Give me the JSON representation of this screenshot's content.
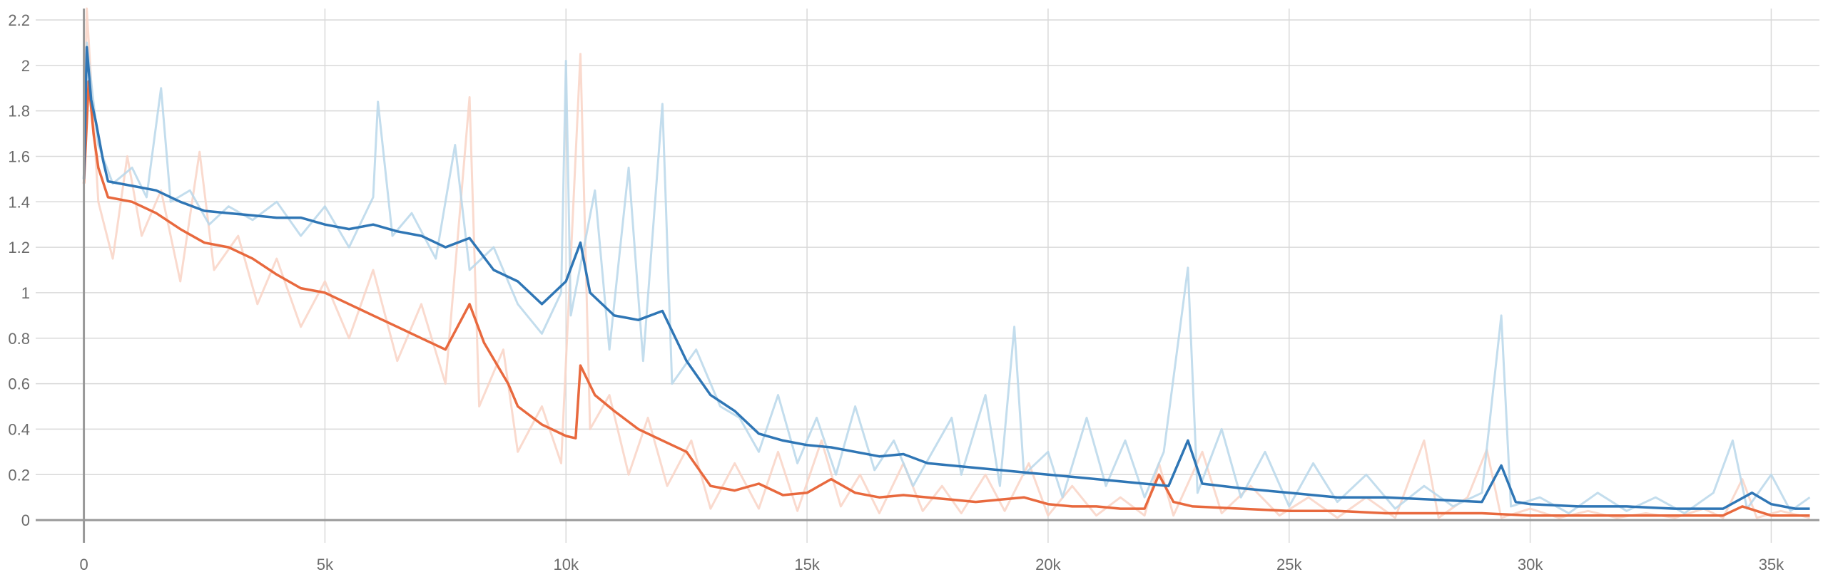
{
  "chart_data": {
    "type": "line",
    "title": "",
    "xlabel": "",
    "ylabel": "",
    "xlim": [
      -1000,
      36000
    ],
    "ylim": [
      -0.1,
      2.25
    ],
    "x_ticks": [
      0,
      5000,
      10000,
      15000,
      20000,
      25000,
      30000,
      35000
    ],
    "x_tick_labels": [
      "0",
      "5k",
      "10k",
      "15k",
      "20k",
      "25k",
      "30k",
      "35k"
    ],
    "y_ticks": [
      0,
      0.2,
      0.4,
      0.6,
      0.8,
      1,
      1.2,
      1.4,
      1.6,
      1.8,
      2,
      2.2
    ],
    "y_tick_labels": [
      "0",
      "0.2",
      "0.4",
      "0.6",
      "0.8",
      "1",
      "1.2",
      "1.4",
      "1.6",
      "1.8",
      "2",
      "2.2"
    ],
    "grid": true,
    "legend": "none",
    "colors": {
      "blue": "#2f76b5",
      "blue_raw": "#b9d7ea",
      "orange": "#e8693e",
      "orange_raw": "#f9d3c6"
    },
    "series": [
      {
        "color": "#2f76b5",
        "smoothed": [
          [
            0,
            1.5
          ],
          [
            60,
            2.08
          ],
          [
            150,
            1.85
          ],
          [
            250,
            1.75
          ],
          [
            400,
            1.58
          ],
          [
            500,
            1.49
          ],
          [
            1000,
            1.47
          ],
          [
            1500,
            1.45
          ],
          [
            2000,
            1.4
          ],
          [
            2500,
            1.36
          ],
          [
            3000,
            1.35
          ],
          [
            3500,
            1.34
          ],
          [
            4000,
            1.33
          ],
          [
            4500,
            1.33
          ],
          [
            5000,
            1.3
          ],
          [
            5500,
            1.28
          ],
          [
            6000,
            1.3
          ],
          [
            6500,
            1.27
          ],
          [
            7000,
            1.25
          ],
          [
            7500,
            1.2
          ],
          [
            8000,
            1.24
          ],
          [
            8500,
            1.1
          ],
          [
            9000,
            1.05
          ],
          [
            9500,
            0.95
          ],
          [
            10000,
            1.05
          ],
          [
            10300,
            1.22
          ],
          [
            10500,
            1.0
          ],
          [
            11000,
            0.9
          ],
          [
            11500,
            0.88
          ],
          [
            12000,
            0.92
          ],
          [
            12500,
            0.7
          ],
          [
            13000,
            0.55
          ],
          [
            13500,
            0.48
          ],
          [
            14000,
            0.38
          ],
          [
            14500,
            0.35
          ],
          [
            15000,
            0.33
          ],
          [
            15500,
            0.32
          ],
          [
            16000,
            0.3
          ],
          [
            16500,
            0.28
          ],
          [
            17000,
            0.29
          ],
          [
            17500,
            0.25
          ],
          [
            18000,
            0.24
          ],
          [
            18500,
            0.23
          ],
          [
            19000,
            0.22
          ],
          [
            19500,
            0.21
          ],
          [
            20000,
            0.2
          ],
          [
            20500,
            0.19
          ],
          [
            21000,
            0.18
          ],
          [
            21500,
            0.17
          ],
          [
            22000,
            0.16
          ],
          [
            22500,
            0.15
          ],
          [
            22900,
            0.35
          ],
          [
            23200,
            0.16
          ],
          [
            24000,
            0.14
          ],
          [
            24500,
            0.13
          ],
          [
            25000,
            0.12
          ],
          [
            25500,
            0.11
          ],
          [
            26000,
            0.1
          ],
          [
            27000,
            0.1
          ],
          [
            28000,
            0.09
          ],
          [
            29000,
            0.08
          ],
          [
            29400,
            0.24
          ],
          [
            29700,
            0.08
          ],
          [
            30000,
            0.07
          ],
          [
            31000,
            0.06
          ],
          [
            32000,
            0.06
          ],
          [
            33000,
            0.05
          ],
          [
            34000,
            0.05
          ],
          [
            34600,
            0.12
          ],
          [
            35000,
            0.07
          ],
          [
            35500,
            0.05
          ],
          [
            35800,
            0.05
          ]
        ],
        "raw": [
          [
            0,
            1.5
          ],
          [
            60,
            2.1
          ],
          [
            300,
            1.65
          ],
          [
            600,
            1.48
          ],
          [
            1000,
            1.55
          ],
          [
            1300,
            1.42
          ],
          [
            1600,
            1.9
          ],
          [
            1800,
            1.4
          ],
          [
            2200,
            1.45
          ],
          [
            2600,
            1.3
          ],
          [
            3000,
            1.38
          ],
          [
            3500,
            1.32
          ],
          [
            4000,
            1.4
          ],
          [
            4500,
            1.25
          ],
          [
            5000,
            1.38
          ],
          [
            5500,
            1.2
          ],
          [
            6000,
            1.42
          ],
          [
            6100,
            1.84
          ],
          [
            6400,
            1.25
          ],
          [
            6800,
            1.35
          ],
          [
            7300,
            1.15
          ],
          [
            7700,
            1.65
          ],
          [
            8000,
            1.1
          ],
          [
            8500,
            1.2
          ],
          [
            9000,
            0.95
          ],
          [
            9500,
            0.82
          ],
          [
            9900,
            1.0
          ],
          [
            10000,
            2.02
          ],
          [
            10100,
            0.9
          ],
          [
            10600,
            1.45
          ],
          [
            10900,
            0.75
          ],
          [
            11300,
            1.55
          ],
          [
            11600,
            0.7
          ],
          [
            12000,
            1.83
          ],
          [
            12200,
            0.6
          ],
          [
            12700,
            0.75
          ],
          [
            13200,
            0.5
          ],
          [
            13600,
            0.45
          ],
          [
            14000,
            0.3
          ],
          [
            14400,
            0.55
          ],
          [
            14800,
            0.25
          ],
          [
            15200,
            0.45
          ],
          [
            15600,
            0.2
          ],
          [
            16000,
            0.5
          ],
          [
            16400,
            0.22
          ],
          [
            16800,
            0.35
          ],
          [
            17200,
            0.15
          ],
          [
            17600,
            0.3
          ],
          [
            18000,
            0.45
          ],
          [
            18200,
            0.2
          ],
          [
            18700,
            0.55
          ],
          [
            19000,
            0.15
          ],
          [
            19300,
            0.85
          ],
          [
            19500,
            0.2
          ],
          [
            20000,
            0.3
          ],
          [
            20300,
            0.1
          ],
          [
            20800,
            0.45
          ],
          [
            21200,
            0.15
          ],
          [
            21600,
            0.35
          ],
          [
            22000,
            0.1
          ],
          [
            22400,
            0.3
          ],
          [
            22900,
            1.11
          ],
          [
            23100,
            0.12
          ],
          [
            23600,
            0.4
          ],
          [
            24000,
            0.1
          ],
          [
            24500,
            0.3
          ],
          [
            25000,
            0.06
          ],
          [
            25500,
            0.25
          ],
          [
            26000,
            0.08
          ],
          [
            26600,
            0.2
          ],
          [
            27200,
            0.05
          ],
          [
            27800,
            0.15
          ],
          [
            28400,
            0.06
          ],
          [
            29000,
            0.12
          ],
          [
            29400,
            0.9
          ],
          [
            29600,
            0.06
          ],
          [
            30200,
            0.1
          ],
          [
            30800,
            0.03
          ],
          [
            31400,
            0.12
          ],
          [
            32000,
            0.04
          ],
          [
            32600,
            0.1
          ],
          [
            33200,
            0.03
          ],
          [
            33800,
            0.12
          ],
          [
            34200,
            0.35
          ],
          [
            34500,
            0.05
          ],
          [
            35000,
            0.2
          ],
          [
            35400,
            0.04
          ],
          [
            35800,
            0.1
          ]
        ]
      },
      {
        "color": "#e8693e",
        "smoothed": [
          [
            0,
            1.48
          ],
          [
            100,
            1.93
          ],
          [
            200,
            1.7
          ],
          [
            300,
            1.55
          ],
          [
            500,
            1.42
          ],
          [
            1000,
            1.4
          ],
          [
            1500,
            1.35
          ],
          [
            2000,
            1.28
          ],
          [
            2500,
            1.22
          ],
          [
            3000,
            1.2
          ],
          [
            3500,
            1.15
          ],
          [
            4000,
            1.08
          ],
          [
            4500,
            1.02
          ],
          [
            5000,
            1.0
          ],
          [
            5500,
            0.95
          ],
          [
            6000,
            0.9
          ],
          [
            6500,
            0.85
          ],
          [
            7000,
            0.8
          ],
          [
            7500,
            0.75
          ],
          [
            8000,
            0.95
          ],
          [
            8300,
            0.78
          ],
          [
            8800,
            0.6
          ],
          [
            9000,
            0.5
          ],
          [
            9500,
            0.42
          ],
          [
            10000,
            0.37
          ],
          [
            10200,
            0.36
          ],
          [
            10300,
            0.68
          ],
          [
            10600,
            0.55
          ],
          [
            11000,
            0.48
          ],
          [
            11500,
            0.4
          ],
          [
            12000,
            0.35
          ],
          [
            12500,
            0.3
          ],
          [
            13000,
            0.15
          ],
          [
            13500,
            0.13
          ],
          [
            14000,
            0.16
          ],
          [
            14500,
            0.11
          ],
          [
            15000,
            0.12
          ],
          [
            15500,
            0.18
          ],
          [
            16000,
            0.12
          ],
          [
            16500,
            0.1
          ],
          [
            17000,
            0.11
          ],
          [
            17500,
            0.1
          ],
          [
            18000,
            0.09
          ],
          [
            18500,
            0.08
          ],
          [
            19000,
            0.09
          ],
          [
            19500,
            0.1
          ],
          [
            20000,
            0.07
          ],
          [
            20500,
            0.06
          ],
          [
            21000,
            0.06
          ],
          [
            21500,
            0.05
          ],
          [
            22000,
            0.05
          ],
          [
            22300,
            0.2
          ],
          [
            22600,
            0.08
          ],
          [
            23000,
            0.06
          ],
          [
            24000,
            0.05
          ],
          [
            25000,
            0.04
          ],
          [
            26000,
            0.04
          ],
          [
            27000,
            0.03
          ],
          [
            28000,
            0.03
          ],
          [
            29000,
            0.03
          ],
          [
            30000,
            0.02
          ],
          [
            31000,
            0.02
          ],
          [
            32000,
            0.02
          ],
          [
            33000,
            0.02
          ],
          [
            34000,
            0.02
          ],
          [
            34400,
            0.06
          ],
          [
            35000,
            0.02
          ],
          [
            35800,
            0.02
          ]
        ],
        "raw": [
          [
            0,
            1.48
          ],
          [
            60,
            2.25
          ],
          [
            300,
            1.4
          ],
          [
            600,
            1.15
          ],
          [
            900,
            1.6
          ],
          [
            1200,
            1.25
          ],
          [
            1600,
            1.45
          ],
          [
            2000,
            1.05
          ],
          [
            2400,
            1.62
          ],
          [
            2700,
            1.1
          ],
          [
            3200,
            1.25
          ],
          [
            3600,
            0.95
          ],
          [
            4000,
            1.15
          ],
          [
            4500,
            0.85
          ],
          [
            5000,
            1.05
          ],
          [
            5500,
            0.8
          ],
          [
            6000,
            1.1
          ],
          [
            6500,
            0.7
          ],
          [
            7000,
            0.95
          ],
          [
            7500,
            0.6
          ],
          [
            8000,
            1.86
          ],
          [
            8200,
            0.5
          ],
          [
            8700,
            0.75
          ],
          [
            9000,
            0.3
          ],
          [
            9500,
            0.5
          ],
          [
            9900,
            0.25
          ],
          [
            10300,
            2.05
          ],
          [
            10500,
            0.4
          ],
          [
            10900,
            0.55
          ],
          [
            11300,
            0.2
          ],
          [
            11700,
            0.45
          ],
          [
            12100,
            0.15
          ],
          [
            12600,
            0.35
          ],
          [
            13000,
            0.05
          ],
          [
            13500,
            0.25
          ],
          [
            14000,
            0.05
          ],
          [
            14400,
            0.3
          ],
          [
            14800,
            0.04
          ],
          [
            15300,
            0.35
          ],
          [
            15700,
            0.06
          ],
          [
            16100,
            0.2
          ],
          [
            16500,
            0.03
          ],
          [
            17000,
            0.25
          ],
          [
            17400,
            0.04
          ],
          [
            17800,
            0.15
          ],
          [
            18200,
            0.03
          ],
          [
            18700,
            0.2
          ],
          [
            19100,
            0.04
          ],
          [
            19600,
            0.25
          ],
          [
            20000,
            0.02
          ],
          [
            20500,
            0.15
          ],
          [
            21000,
            0.02
          ],
          [
            21500,
            0.1
          ],
          [
            22000,
            0.02
          ],
          [
            22300,
            0.25
          ],
          [
            22600,
            0.02
          ],
          [
            23200,
            0.3
          ],
          [
            23600,
            0.03
          ],
          [
            24200,
            0.15
          ],
          [
            24800,
            0.02
          ],
          [
            25400,
            0.1
          ],
          [
            26000,
            0.01
          ],
          [
            26600,
            0.1
          ],
          [
            27200,
            0.01
          ],
          [
            27800,
            0.35
          ],
          [
            28100,
            0.01
          ],
          [
            28700,
            0.1
          ],
          [
            29100,
            0.31
          ],
          [
            29400,
            0.01
          ],
          [
            30000,
            0.05
          ],
          [
            30600,
            0.01
          ],
          [
            31200,
            0.04
          ],
          [
            31800,
            0.01
          ],
          [
            32400,
            0.03
          ],
          [
            33000,
            0.01
          ],
          [
            33600,
            0.05
          ],
          [
            34000,
            0.01
          ],
          [
            34400,
            0.18
          ],
          [
            34700,
            0.01
          ],
          [
            35200,
            0.04
          ],
          [
            35800,
            0.01
          ]
        ]
      }
    ]
  }
}
